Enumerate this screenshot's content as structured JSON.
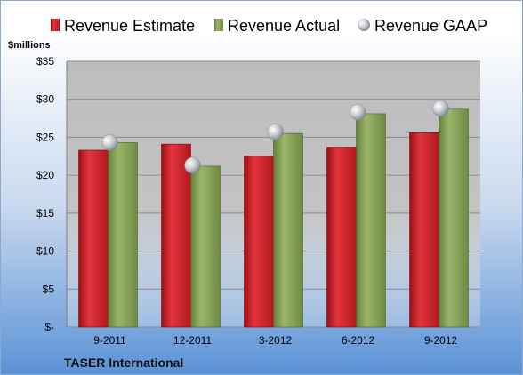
{
  "chart_data": {
    "type": "bar",
    "title": "",
    "ylabel": "$millions",
    "xlabel": "",
    "company": "TASER International",
    "categories": [
      "9-2011",
      "12-2011",
      "3-2012",
      "6-2012",
      "9-2012"
    ],
    "ylim": [
      0,
      35
    ],
    "yticks": [
      0,
      5,
      10,
      15,
      20,
      25,
      30,
      35
    ],
    "ytick_labels": [
      "$-",
      "$5",
      "$10",
      "$15",
      "$20",
      "$25",
      "$30",
      "$35"
    ],
    "grid": true,
    "legend_position": "top",
    "series": [
      {
        "name": "Revenue Estimate",
        "kind": "bar",
        "color": "#cc2229",
        "values": [
          23.3,
          24.1,
          22.5,
          23.7,
          25.6
        ]
      },
      {
        "name": "Revenue Actual",
        "kind": "bar",
        "color": "#8aa45a",
        "values": [
          24.3,
          21.2,
          25.5,
          28.1,
          28.7
        ]
      },
      {
        "name": "Revenue GAAP",
        "kind": "marker",
        "color": "#b8bcc4",
        "values": [
          24.3,
          21.3,
          25.7,
          28.3,
          28.8
        ]
      }
    ]
  }
}
